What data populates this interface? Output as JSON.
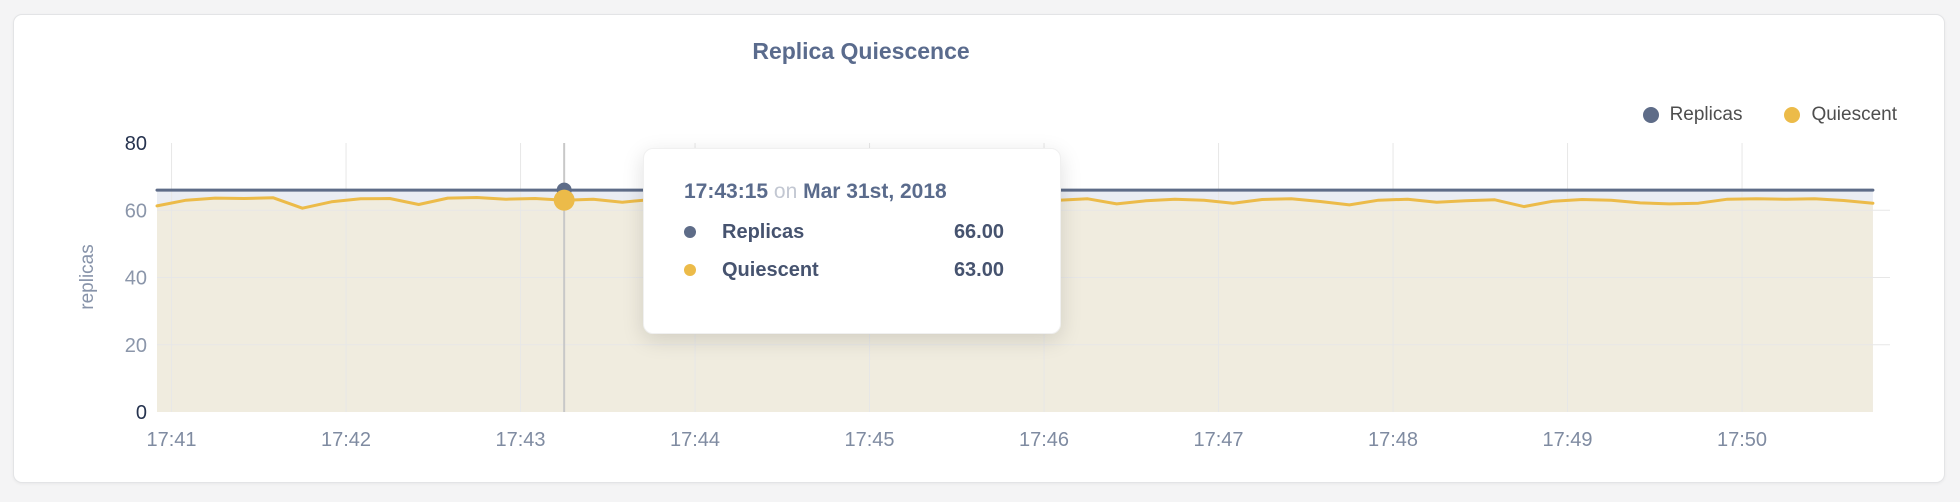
{
  "colors": {
    "title": "#5a6b8d",
    "grid": "#e7e7e7",
    "crosshair": "#c8c8c8",
    "axis_tick": "#7f8ba1",
    "axis_tick_strong": "#26334f",
    "axis_tick_muted": "#8b96aa"
  },
  "tooltip": {
    "time": "17:43:15",
    "connector": "on",
    "date": "Mar 31st, 2018",
    "rows": [
      {
        "label": "Replicas",
        "value": "66.00"
      },
      {
        "label": "Quiescent",
        "value": "63.00"
      }
    ]
  },
  "chart_data": {
    "type": "line",
    "title": "Replica Quiescence",
    "legend_position": "top-right",
    "grid": true,
    "x_axis": {
      "tick_labels": [
        "17:41",
        "17:42",
        "17:43",
        "17:44",
        "17:45",
        "17:46",
        "17:47",
        "17:48",
        "17:49",
        "17:50"
      ],
      "tick_offsets_s": [
        5,
        65,
        125,
        185,
        245,
        305,
        365,
        425,
        485,
        545
      ],
      "point_step_s": 10
    },
    "y_axis": {
      "label": "replicas",
      "ticks": [
        0,
        20,
        40,
        60,
        80
      ],
      "range": [
        0,
        80
      ]
    },
    "hover": {
      "index": 14,
      "time": "17:43:15",
      "date": "Mar 31st, 2018"
    },
    "series": [
      {
        "name": "Replicas",
        "color": "#5e6c88",
        "fill": "#eaedf3",
        "hover_value": 66.0,
        "values": [
          66,
          66,
          66,
          66,
          66,
          66,
          66,
          66,
          66,
          66,
          66,
          66,
          66,
          66,
          66,
          66,
          66,
          66,
          66,
          66,
          66,
          66,
          66,
          66,
          66,
          66,
          66,
          66,
          66,
          66,
          66,
          66,
          66,
          66,
          66,
          66,
          66,
          66,
          66,
          66,
          66,
          66,
          66,
          66,
          66,
          66,
          66,
          66,
          66,
          66,
          66,
          66,
          66,
          66,
          66,
          66,
          66,
          66,
          66,
          66
        ]
      },
      {
        "name": "Quiescent",
        "color": "#ecbb49",
        "fill": "#f0ecdf",
        "hover_value": 63.0,
        "values": [
          61.3,
          63.0,
          63.6,
          63.5,
          63.7,
          60.6,
          62.5,
          63.4,
          63.5,
          61.7,
          63.6,
          63.8,
          63.3,
          63.5,
          63.0,
          63.3,
          62.4,
          63.2,
          63.1,
          62.8,
          63.5,
          63.2,
          62.6,
          63.4,
          63.0,
          62.7,
          63.3,
          63.5,
          62.9,
          63.2,
          62.3,
          63.0,
          63.4,
          61.9,
          62.8,
          63.3,
          63.0,
          62.1,
          63.2,
          63.4,
          62.6,
          61.6,
          63.0,
          63.3,
          62.4,
          62.8,
          63.1,
          61.1,
          62.7,
          63.2,
          63.0,
          62.2,
          61.9,
          62.1,
          63.3,
          63.4,
          63.3,
          63.4,
          62.9,
          62.1
        ]
      }
    ]
  }
}
